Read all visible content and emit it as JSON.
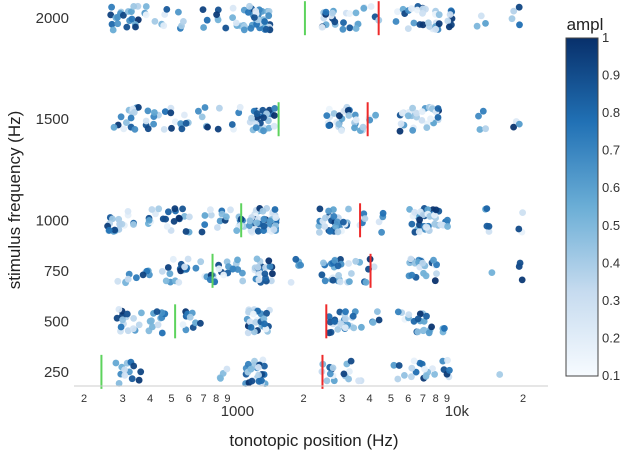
{
  "chart_data": {
    "type": "scatter",
    "title": "",
    "xlabel": "tonotopic position (Hz)",
    "ylabel": "stimulus frequency (Hz)",
    "x_scale": "log",
    "xlim": [
      180,
      26000
    ],
    "ylim": [
      180,
      2090
    ],
    "x_ticks": [
      {
        "v": 200,
        "label": "2"
      },
      {
        "v": 300,
        "label": "3"
      },
      {
        "v": 400,
        "label": "4"
      },
      {
        "v": 500,
        "label": "5"
      },
      {
        "v": 600,
        "label": "6"
      },
      {
        "v": 700,
        "label": "7"
      },
      {
        "v": 800,
        "label": "8"
      },
      {
        "v": 900,
        "label": "9"
      },
      {
        "v": 1000,
        "label": "1000"
      },
      {
        "v": 2000,
        "label": "2"
      },
      {
        "v": 3000,
        "label": "3"
      },
      {
        "v": 4000,
        "label": "4"
      },
      {
        "v": 5000,
        "label": "5"
      },
      {
        "v": 6000,
        "label": "6"
      },
      {
        "v": 7000,
        "label": "7"
      },
      {
        "v": 8000,
        "label": "8"
      },
      {
        "v": 9000,
        "label": "9"
      },
      {
        "v": 10000,
        "label": "10k"
      },
      {
        "v": 20000,
        "label": "2"
      }
    ],
    "y_ticks": [
      250,
      500,
      750,
      1000,
      1500,
      2000
    ],
    "colorbar": {
      "title": "ampl",
      "min": 0.1,
      "max": 1,
      "ticks": [
        "0.1",
        "0.2",
        "0.3",
        "0.4",
        "0.5",
        "0.6",
        "0.7",
        "0.8",
        "0.9",
        "1"
      ],
      "low_color": "#f7fbff",
      "high_color": "#08306b"
    },
    "green_markers": [
      {
        "stim": 250,
        "x": 240
      },
      {
        "stim": 500,
        "x": 520
      },
      {
        "stim": 750,
        "x": 770
      },
      {
        "stim": 1000,
        "x": 1040
      },
      {
        "stim": 1500,
        "x": 1540
      },
      {
        "stim": 2000,
        "x": 2030
      }
    ],
    "red_markers": [
      {
        "stim": 250,
        "x": 2440
      },
      {
        "stim": 500,
        "x": 2540
      },
      {
        "stim": 750,
        "x": 4040
      },
      {
        "stim": 1000,
        "x": 3620
      },
      {
        "stim": 1500,
        "x": 3920
      },
      {
        "stim": 2000,
        "x": 4400
      }
    ],
    "rows": [
      {
        "stim": 250,
        "clusters": [
          [
            300,
            8
          ],
          [
            340,
            5
          ],
          [
            880,
            4
          ],
          [
            1200,
            26
          ],
          [
            2550,
            9
          ],
          [
            3050,
            5
          ],
          [
            3500,
            3
          ],
          [
            5400,
            4
          ],
          [
            6500,
            5
          ],
          [
            7500,
            8
          ],
          [
            9000,
            6
          ],
          [
            15200,
            1
          ]
        ]
      },
      {
        "stim": 500,
        "clusters": [
          [
            300,
            10
          ],
          [
            340,
            6
          ],
          [
            430,
            12
          ],
          [
            600,
            6
          ],
          [
            650,
            4
          ],
          [
            1250,
            30
          ],
          [
            2850,
            14
          ],
          [
            3100,
            8
          ],
          [
            3500,
            4
          ],
          [
            4200,
            4
          ],
          [
            5600,
            3
          ],
          [
            6500,
            10
          ],
          [
            7500,
            6
          ],
          [
            8500,
            3
          ]
        ]
      },
      {
        "stim": 750,
        "clusters": [
          [
            300,
            5
          ],
          [
            370,
            6
          ],
          [
            480,
            6
          ],
          [
            560,
            10
          ],
          [
            680,
            3
          ],
          [
            780,
            10
          ],
          [
            920,
            6
          ],
          [
            1000,
            5
          ],
          [
            1300,
            22
          ],
          [
            1850,
            5
          ],
          [
            2650,
            14
          ],
          [
            2950,
            10
          ],
          [
            3400,
            4
          ],
          [
            4000,
            5
          ],
          [
            6400,
            12
          ],
          [
            7500,
            10
          ],
          [
            14000,
            1
          ],
          [
            19000,
            3
          ]
        ]
      },
      {
        "stim": 1000,
        "clusters": [
          [
            280,
            14
          ],
          [
            330,
            4
          ],
          [
            400,
            6
          ],
          [
            470,
            6
          ],
          [
            560,
            10
          ],
          [
            720,
            5
          ],
          [
            870,
            8
          ],
          [
            1000,
            10
          ],
          [
            1300,
            50
          ],
          [
            2600,
            18
          ],
          [
            3000,
            14
          ],
          [
            3800,
            4
          ],
          [
            4600,
            4
          ],
          [
            6400,
            12
          ],
          [
            7500,
            24
          ],
          [
            8500,
            8
          ],
          [
            14000,
            5
          ],
          [
            19500,
            3
          ]
        ]
      },
      {
        "stim": 1500,
        "clusters": [
          [
            280,
            3
          ],
          [
            330,
            12
          ],
          [
            410,
            8
          ],
          [
            490,
            6
          ],
          [
            560,
            6
          ],
          [
            690,
            6
          ],
          [
            800,
            2
          ],
          [
            1000,
            4
          ],
          [
            1300,
            34
          ],
          [
            2700,
            10
          ],
          [
            3000,
            8
          ],
          [
            3450,
            10
          ],
          [
            4000,
            5
          ],
          [
            6000,
            14
          ],
          [
            7500,
            16
          ],
          [
            12800,
            4
          ],
          [
            19000,
            3
          ]
        ]
      },
      {
        "stim": 2000,
        "clusters": [
          [
            280,
            10
          ],
          [
            340,
            10
          ],
          [
            400,
            4
          ],
          [
            470,
            4
          ],
          [
            570,
            4
          ],
          [
            700,
            3
          ],
          [
            830,
            6
          ],
          [
            1000,
            10
          ],
          [
            1250,
            30
          ],
          [
            2600,
            12
          ],
          [
            2950,
            4
          ],
          [
            3500,
            8
          ],
          [
            4200,
            4
          ],
          [
            5500,
            4
          ],
          [
            6500,
            10
          ],
          [
            7500,
            8
          ],
          [
            8700,
            12
          ],
          [
            9500,
            4
          ],
          [
            13000,
            3
          ],
          [
            19000,
            4
          ]
        ]
      }
    ]
  }
}
